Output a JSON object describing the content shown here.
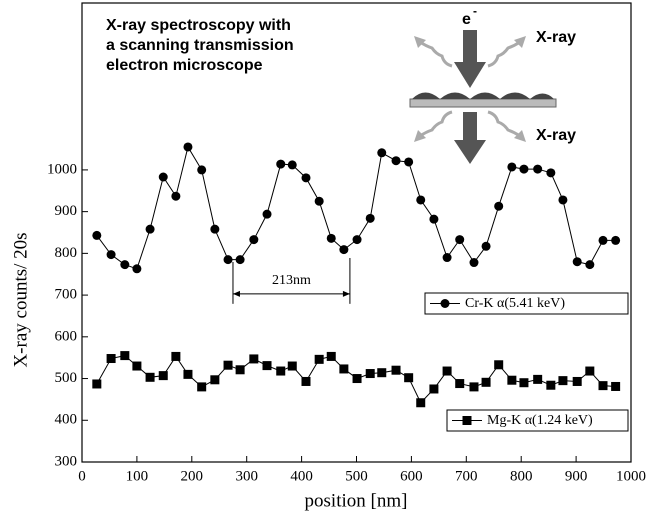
{
  "chart_data": {
    "type": "line",
    "title": [
      "X-ray spectroscopy with",
      "a scanning transmission",
      "electron microscope"
    ],
    "inset_labels": {
      "electron": "e",
      "electron_sup": "-",
      "xray_top": "X-ray",
      "xray_bottom": "X-ray"
    },
    "x_label": "position [nm]",
    "y_label": "X-ray counts/ 20s",
    "xlim": [
      0,
      1000
    ],
    "xticks": [
      0,
      100,
      200,
      300,
      400,
      500,
      600,
      700,
      800,
      900,
      1000
    ],
    "ylim": [
      300,
      1400
    ],
    "yticks": [
      300,
      400,
      500,
      600,
      700,
      800,
      900,
      1000
    ],
    "x": [
      27,
      53,
      78,
      100,
      124,
      148,
      171,
      193,
      218,
      242,
      266,
      288,
      313,
      337,
      362,
      383,
      408,
      432,
      454,
      477,
      501,
      525,
      546,
      572,
      595,
      617,
      641,
      665,
      688,
      714,
      736,
      759,
      783,
      805,
      830,
      854,
      876,
      902,
      925,
      949,
      972
    ],
    "series": [
      {
        "name": "Cr-K α(5.41 keV)",
        "color": "#000000",
        "marker": "circle",
        "values": [
          843,
          797,
          773,
          763,
          858,
          983,
          937,
          1055,
          1000,
          858,
          785,
          785,
          833,
          894,
          1014,
          1012,
          981,
          925,
          836,
          809,
          833,
          884,
          1041,
          1022,
          1019,
          928,
          882,
          790,
          833,
          778,
          817,
          913,
          1007,
          1002,
          1002,
          993,
          928,
          780,
          773,
          831,
          831
        ]
      },
      {
        "name": "Mg-K α(1.24 keV)",
        "color": "#000000",
        "marker": "square",
        "values": [
          487,
          548,
          555,
          530,
          503,
          507,
          553,
          510,
          480,
          497,
          532,
          521,
          547,
          531,
          518,
          530,
          493,
          546,
          553,
          523,
          500,
          512,
          514,
          520,
          502,
          442,
          475,
          518,
          488,
          480,
          491,
          533,
          496,
          490,
          498,
          484,
          495,
          493,
          518,
          483,
          481
        ]
      }
    ],
    "annotation": {
      "text": "213nm",
      "x1": 275,
      "x2": 488,
      "y": 703
    }
  }
}
